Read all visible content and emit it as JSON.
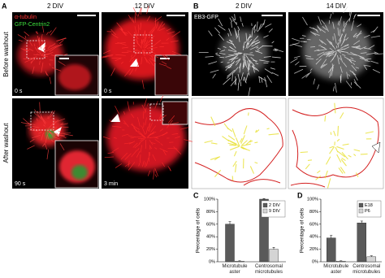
{
  "panels": {
    "A": {
      "label": "A",
      "columns": [
        "2 DIV",
        "12 DIV"
      ],
      "rows": [
        "Before washout",
        "After washout"
      ],
      "stain_red": "α-tubulin",
      "stain_green": "GFP-Centrin2",
      "timestamps": [
        "0 s",
        "0 s",
        "90 s",
        "3 min"
      ]
    },
    "B": {
      "label": "B",
      "columns": [
        "2 DIV",
        "14 DIV"
      ],
      "marker": "EB3-GFP"
    }
  },
  "chart_data": [
    {
      "type": "bar",
      "label": "C",
      "ylabel": "Percentage of cells",
      "categories": [
        "Microtubule aster",
        "Centrosomal microtubules"
      ],
      "series": [
        {
          "name": "2 DIV",
          "color": "#5a5a5a",
          "values": [
            60,
            100
          ],
          "errors": [
            4,
            1
          ]
        },
        {
          "name": "9 DIV",
          "color": "#d4d4d4",
          "values": [
            1,
            20
          ],
          "errors": [
            0.5,
            3
          ]
        }
      ],
      "ylim": [
        0,
        100
      ],
      "yticks": [
        {
          "value": 0,
          "label": "0%"
        },
        {
          "value": 20,
          "label": "20%"
        },
        {
          "value": 40,
          "label": "40%"
        },
        {
          "value": 60,
          "label": "60%"
        },
        {
          "value": 80,
          "label": "80%"
        },
        {
          "value": 100,
          "label": "100%"
        }
      ]
    },
    {
      "type": "bar",
      "label": "D",
      "ylabel": "Percentage of cells",
      "categories": [
        "Microtubule aster",
        "Centrosomal microtubules"
      ],
      "series": [
        {
          "name": "E18",
          "color": "#5a5a5a",
          "values": [
            38,
            62
          ],
          "errors": [
            4,
            3
          ]
        },
        {
          "name": "P6",
          "color": "#d4d4d4",
          "values": [
            1,
            8
          ],
          "errors": [
            0.5,
            1.5
          ]
        }
      ],
      "ylim": [
        0,
        100
      ],
      "yticks": [
        {
          "value": 0,
          "label": "0%"
        },
        {
          "value": 20,
          "label": "20%"
        },
        {
          "value": 40,
          "label": "40%"
        },
        {
          "value": 60,
          "label": "60%"
        },
        {
          "value": 80,
          "label": "80%"
        },
        {
          "value": 100,
          "label": "100%"
        }
      ]
    }
  ]
}
